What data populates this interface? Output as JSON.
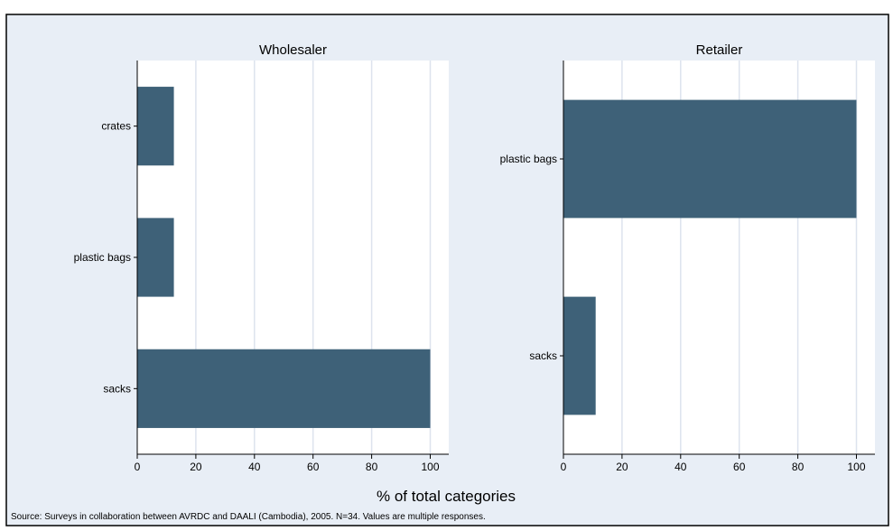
{
  "chart_data": {
    "type": "bar",
    "orientation": "horizontal",
    "xlabel": "% of total categories",
    "xlim": [
      0,
      100
    ],
    "xticks": [
      0,
      20,
      40,
      60,
      80,
      100
    ],
    "note": "Source: Surveys in collaboration between AVRDC and DAALI (Cambodia), 2005. N=34. Values are multiple responses.",
    "grid": true,
    "colors": {
      "bar": "#3e6178",
      "outer_background": "#e8eef6",
      "plot_background": "#ffffff",
      "facet_header": "#e8eef6",
      "grid": "#dde3ee"
    },
    "facets": [
      {
        "title": "Wholesaler",
        "categories": [
          "crates",
          "plastic bags",
          "sacks"
        ],
        "values": [
          12.5,
          12.5,
          100
        ]
      },
      {
        "title": "Retailer",
        "categories": [
          "plastic bags",
          "sacks"
        ],
        "values": [
          100,
          11
        ]
      }
    ]
  }
}
